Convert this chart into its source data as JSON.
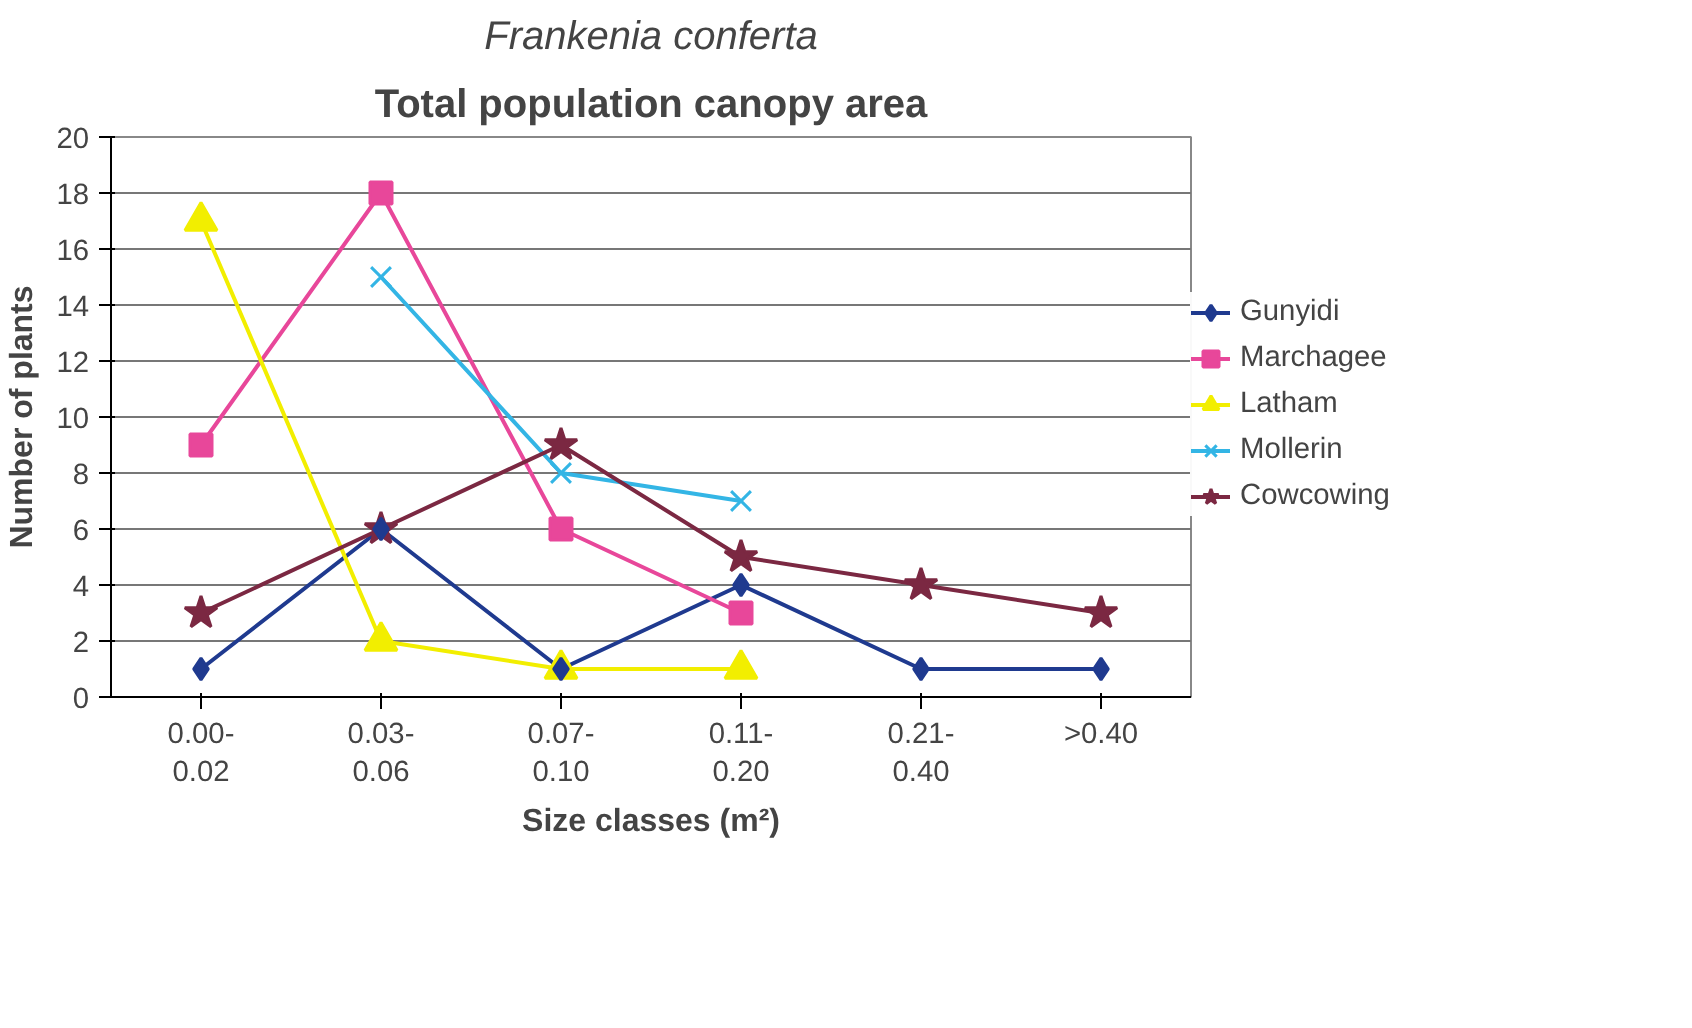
{
  "chart_data": {
    "type": "line",
    "title": "Frankenia conferta",
    "subtitle": "Total population canopy area",
    "xlabel": "Size classes (m²)",
    "ylabel": "Number of plants",
    "categories": [
      "0.00-0.02",
      "0.03-0.06",
      "0.07-0.10",
      "0.11-0.20",
      "0.21-0.40",
      ">0.40"
    ],
    "series": [
      {
        "name": "Gunyidi",
        "color": "#1f3a8f",
        "marker": "diamond",
        "values": [
          1,
          6,
          1,
          4,
          1,
          1
        ]
      },
      {
        "name": "Marchagee",
        "color": "#e8479a",
        "marker": "square",
        "values": [
          9,
          18,
          6,
          3,
          null,
          null
        ]
      },
      {
        "name": "Latham",
        "color": "#f2ee00",
        "marker": "triangle",
        "values": [
          17,
          2,
          1,
          1,
          null,
          null
        ]
      },
      {
        "name": "Mollerin",
        "color": "#33b5e5",
        "marker": "cross",
        "values": [
          null,
          15,
          8,
          7,
          null,
          null
        ]
      },
      {
        "name": "Cowcowing",
        "color": "#7b2842",
        "marker": "star",
        "values": [
          3,
          6,
          9,
          5,
          4,
          3
        ]
      }
    ],
    "ylim": [
      0,
      20
    ],
    "yticks": [
      0,
      2,
      4,
      6,
      8,
      10,
      12,
      14,
      16,
      18,
      20
    ],
    "grid": "y",
    "legend": "right",
    "line_style": "solid"
  }
}
